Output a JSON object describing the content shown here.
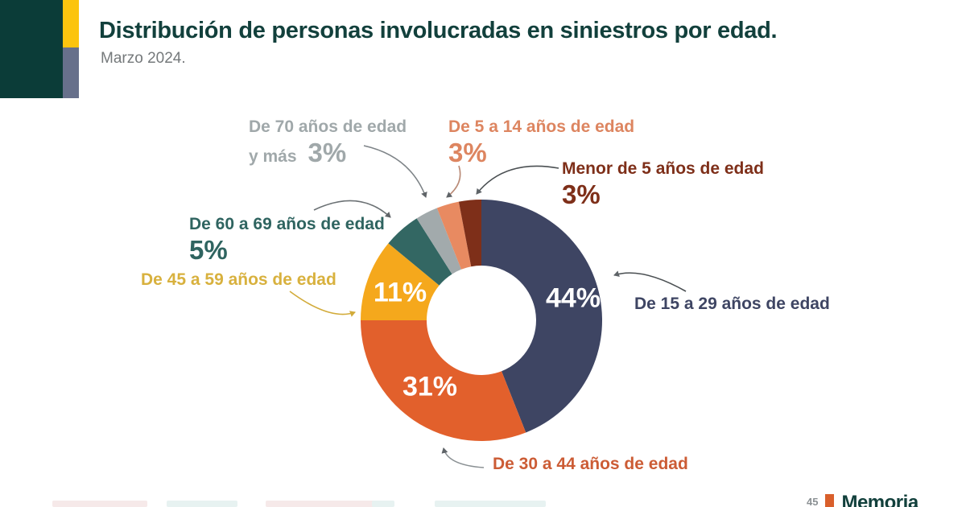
{
  "header": {
    "title": "Distribución de personas involucradas en siniestros por edad.",
    "subtitle": "Marzo 2024."
  },
  "colors": {
    "sidebar_green": "#0b3c38",
    "sidebar_yellow": "#fcc40e",
    "sidebar_slate": "#67708b",
    "title": "#12403c",
    "subtitle": "#75797b",
    "pct_white": "#ffffff",
    "arrow_gray": "#5f6468",
    "arrow_yellow": "#d2ab3a",
    "brand_orange": "#d95f2b",
    "brand_teal": "#12403c",
    "brand_prefix_gray": "#8b9194"
  },
  "footer": {
    "brand_prefix": "45",
    "brand": "Memoria"
  },
  "chart_data": {
    "type": "pie",
    "subtype": "donut",
    "title": "Distribución de personas involucradas en siniestros por edad.",
    "period": "Marzo 2024.",
    "unit": "%",
    "start_angle_deg": 0,
    "direction": "clockwise",
    "inner_radius_ratio": 0.45,
    "segments": [
      {
        "id": "15-29",
        "label": "De 15 a 29 años de edad",
        "value": 44,
        "pct_label": "44%",
        "color": "#3e4563",
        "label_color": "#3e4563",
        "value_label_position": "inside"
      },
      {
        "id": "30-44",
        "label": "De 30 a 44 años de edad",
        "value": 31,
        "pct_label": "31%",
        "color": "#e2602c",
        "label_color": "#cc5c35",
        "value_label_position": "inside"
      },
      {
        "id": "45-59",
        "label": "De 45 a 59 años de edad",
        "value": 11,
        "pct_label": "11%",
        "color": "#f5a81c",
        "label_color": "#d8b13e",
        "value_label_position": "inside"
      },
      {
        "id": "60-69",
        "label": "De 60 a 69 años de edad",
        "value": 5,
        "pct_label": "5%",
        "color": "#336763",
        "label_color": "#2f6460",
        "value_label_position": "callout"
      },
      {
        "id": "70-plus",
        "label": "De 70 años de edad y más",
        "label_line1": "De 70 años de edad",
        "label_line2": "y más",
        "value": 3,
        "pct_label": "3%",
        "color": "#a2aaac",
        "label_color": "#a0a8aa",
        "value_label_position": "callout"
      },
      {
        "id": "5-14",
        "label": "De 5 a 14 años de edad",
        "value": 3,
        "pct_label": "3%",
        "color": "#e88a61",
        "label_color": "#dd8560",
        "value_label_position": "callout"
      },
      {
        "id": "under-5",
        "label": "Menor de 5 años de edad",
        "value": 3,
        "pct_label": "3%",
        "color": "#7e2f19",
        "label_color": "#7e2f19",
        "value_label_position": "callout"
      }
    ]
  }
}
